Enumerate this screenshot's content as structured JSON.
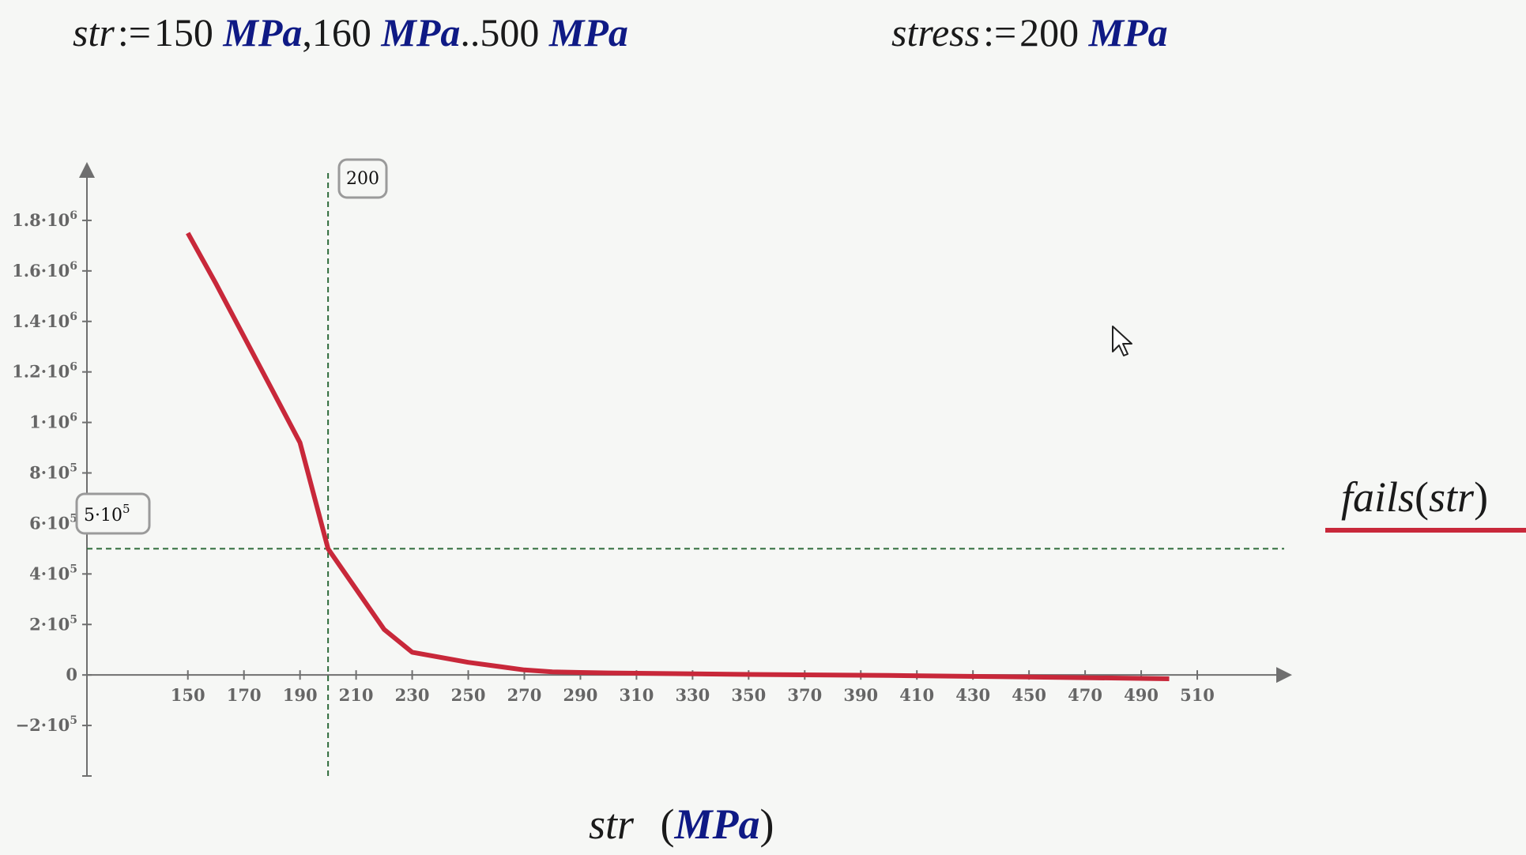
{
  "header": {
    "range_def": {
      "var": "str",
      "assign": ":=",
      "v1": "150",
      "v2": "160",
      "v3": "500",
      "unit": "MPa",
      "comma": ",",
      "dots": ".."
    },
    "stress_def": {
      "var": "stress",
      "assign": ":=",
      "value": "200",
      "unit": "MPa"
    }
  },
  "legend": {
    "fn": "fails",
    "arg": "str",
    "color": "#c8283a"
  },
  "x_axis_title": {
    "var": "str",
    "unit": "MPa"
  },
  "callouts": {
    "x_marker": "200",
    "y_marker_mantissa": "5",
    "y_marker_exp": "5"
  },
  "chart_data": {
    "type": "line",
    "xlabel": "str (MPa)",
    "ylabel": "",
    "series": [
      {
        "name": "fails(str)",
        "color": "#c8283a",
        "x": [
          150,
          160,
          170,
          180,
          190,
          200,
          210,
          220,
          230,
          240,
          250,
          260,
          270,
          280,
          290,
          300,
          350,
          400,
          450,
          500
        ],
        "y": [
          1750000,
          1550000,
          1340000,
          1130000,
          920000,
          500000,
          340000,
          180000,
          90000,
          70000,
          50000,
          35000,
          20000,
          12000,
          10000,
          8000,
          2000,
          -2000,
          -8000,
          -15000
        ]
      }
    ],
    "markers": {
      "vertical": {
        "x": 200,
        "label": "200",
        "color": "#2e6b3a"
      },
      "horizontal": {
        "y": 500000,
        "label": "5·10^5",
        "color": "#2e6b3a"
      }
    },
    "xlim": [
      114,
      541
    ],
    "ylim": [
      -400000,
      2000000
    ],
    "x_ticks": [
      150,
      170,
      190,
      210,
      230,
      250,
      270,
      290,
      310,
      330,
      350,
      370,
      390,
      410,
      430,
      450,
      470,
      490,
      510
    ],
    "y_ticks": [
      {
        "value": -200000,
        "mantissa": "−2",
        "exp": "5"
      },
      {
        "value": 0,
        "mantissa": "0",
        "exp": ""
      },
      {
        "value": 200000,
        "mantissa": "2",
        "exp": "5"
      },
      {
        "value": 400000,
        "mantissa": "4",
        "exp": "5"
      },
      {
        "value": 600000,
        "mantissa": "6",
        "exp": "5"
      },
      {
        "value": 800000,
        "mantissa": "8",
        "exp": "5"
      },
      {
        "value": 1000000,
        "mantissa": "1",
        "exp": "6"
      },
      {
        "value": 1200000,
        "mantissa": "1.2",
        "exp": "6"
      },
      {
        "value": 1400000,
        "mantissa": "1.4",
        "exp": "6"
      },
      {
        "value": 1600000,
        "mantissa": "1.6",
        "exp": "6"
      },
      {
        "value": 1800000,
        "mantissa": "1.8",
        "exp": "6"
      }
    ],
    "grid": false
  }
}
